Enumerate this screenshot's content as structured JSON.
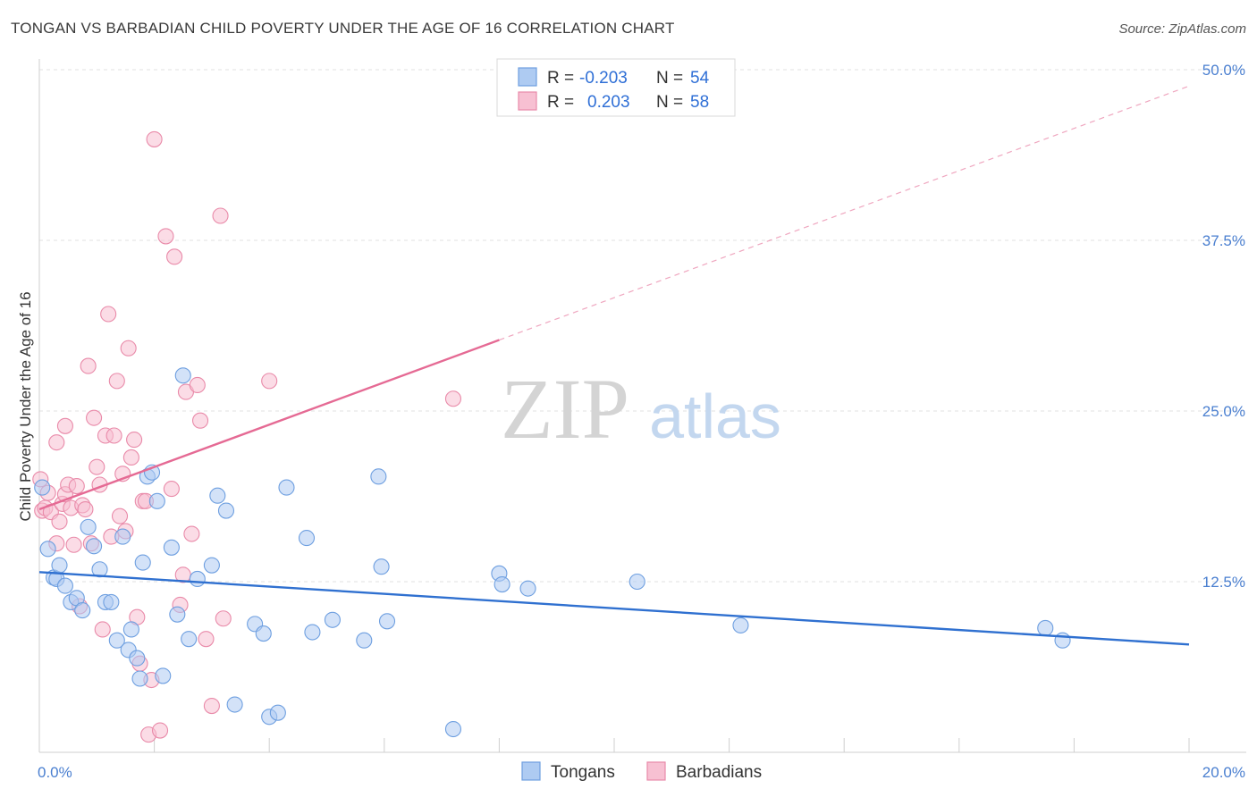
{
  "title": "TONGAN VS BARBADIAN CHILD POVERTY UNDER THE AGE OF 16 CORRELATION CHART",
  "source": "Source: ZipAtlas.com",
  "watermark": {
    "zip": "ZIP",
    "atlas": "atlas"
  },
  "colors": {
    "tongans_fill": "#aecbf2",
    "tongans_stroke": "#6e9fe0",
    "tongans_line": "#2f70d0",
    "barbadians_fill": "#f7c0d2",
    "barbadians_stroke": "#e98aa9",
    "barbadians_line": "#e56a94",
    "tick": "#4a7fd0"
  },
  "legend": {
    "rows": [
      {
        "r_label": "R =",
        "r_value": "-0.203",
        "n_label": "N =",
        "n_value": "54"
      },
      {
        "r_label": "R =",
        "r_value": "0.203",
        "n_label": "N =",
        "n_value": "58"
      }
    ]
  },
  "chart_data": {
    "type": "scatter",
    "title": "TONGAN VS BARBADIAN CHILD POVERTY UNDER THE AGE OF 16 CORRELATION CHART",
    "xlabel": "",
    "ylabel": "Child Poverty Under the Age of 16",
    "xlim": [
      0,
      20
    ],
    "ylim": [
      0,
      50
    ],
    "x_tick_labels": [
      {
        "value": 0,
        "label": "0.0%"
      },
      {
        "value": 20,
        "label": "20.0%"
      }
    ],
    "y_tick_labels": [
      {
        "value": 12.5,
        "label": "12.5%"
      },
      {
        "value": 25,
        "label": "25.0%"
      },
      {
        "value": 37.5,
        "label": "37.5%"
      },
      {
        "value": 50,
        "label": "50.0%"
      }
    ],
    "grid": true,
    "legend_position": "top-center",
    "series": [
      {
        "name": "Tongans",
        "r": -0.203,
        "n": 54,
        "trend": {
          "x": [
            0,
            20
          ],
          "y": [
            13.2,
            7.9
          ],
          "solid_until": 20
        },
        "points": [
          [
            0.05,
            19.4
          ],
          [
            0.15,
            14.9
          ],
          [
            0.25,
            12.8
          ],
          [
            0.3,
            12.7
          ],
          [
            0.35,
            13.7
          ],
          [
            0.45,
            12.2
          ],
          [
            0.55,
            11.0
          ],
          [
            0.65,
            11.3
          ],
          [
            0.75,
            10.4
          ],
          [
            0.85,
            16.5
          ],
          [
            0.95,
            15.1
          ],
          [
            1.05,
            13.4
          ],
          [
            1.15,
            11.0
          ],
          [
            1.25,
            11.0
          ],
          [
            1.35,
            8.2
          ],
          [
            1.45,
            15.8
          ],
          [
            1.55,
            7.5
          ],
          [
            1.6,
            9.0
          ],
          [
            1.7,
            6.9
          ],
          [
            1.75,
            5.4
          ],
          [
            1.8,
            13.9
          ],
          [
            1.88,
            20.2
          ],
          [
            1.96,
            20.5
          ],
          [
            2.05,
            18.4
          ],
          [
            2.15,
            5.6
          ],
          [
            2.3,
            15.0
          ],
          [
            2.4,
            10.1
          ],
          [
            2.5,
            27.6
          ],
          [
            2.6,
            8.3
          ],
          [
            2.75,
            12.7
          ],
          [
            3.0,
            13.7
          ],
          [
            3.1,
            18.8
          ],
          [
            3.25,
            17.7
          ],
          [
            3.4,
            3.5
          ],
          [
            3.75,
            9.4
          ],
          [
            3.9,
            8.7
          ],
          [
            4.0,
            2.6
          ],
          [
            4.15,
            2.9
          ],
          [
            4.3,
            19.4
          ],
          [
            4.65,
            15.7
          ],
          [
            4.75,
            8.8
          ],
          [
            5.1,
            9.7
          ],
          [
            5.65,
            8.2
          ],
          [
            5.9,
            20.2
          ],
          [
            5.95,
            13.6
          ],
          [
            6.05,
            9.6
          ],
          [
            7.2,
            1.7
          ],
          [
            8.0,
            13.1
          ],
          [
            8.05,
            12.3
          ],
          [
            8.5,
            12.0
          ],
          [
            10.4,
            12.5
          ],
          [
            12.2,
            9.3
          ],
          [
            17.5,
            9.1
          ],
          [
            17.8,
            8.2
          ]
        ]
      },
      {
        "name": "Barbadians",
        "r": 0.203,
        "n": 58,
        "trend": {
          "x": [
            0,
            20
          ],
          "y": [
            17.8,
            48.8
          ],
          "solid_until": 8
        },
        "points": [
          [
            0.02,
            20.0
          ],
          [
            0.05,
            17.7
          ],
          [
            0.1,
            17.9
          ],
          [
            0.15,
            19.0
          ],
          [
            0.2,
            17.6
          ],
          [
            0.3,
            15.3
          ],
          [
            0.3,
            22.7
          ],
          [
            0.35,
            16.9
          ],
          [
            0.4,
            18.2
          ],
          [
            0.45,
            18.9
          ],
          [
            0.45,
            23.9
          ],
          [
            0.5,
            19.6
          ],
          [
            0.55,
            17.9
          ],
          [
            0.6,
            15.2
          ],
          [
            0.65,
            19.5
          ],
          [
            0.7,
            10.7
          ],
          [
            0.75,
            18.1
          ],
          [
            0.8,
            17.8
          ],
          [
            0.85,
            28.3
          ],
          [
            0.9,
            15.3
          ],
          [
            0.95,
            24.5
          ],
          [
            1.0,
            20.9
          ],
          [
            1.05,
            19.6
          ],
          [
            1.1,
            9.0
          ],
          [
            1.15,
            23.2
          ],
          [
            1.2,
            32.1
          ],
          [
            1.25,
            15.8
          ],
          [
            1.3,
            23.2
          ],
          [
            1.35,
            27.2
          ],
          [
            1.4,
            17.3
          ],
          [
            1.45,
            20.4
          ],
          [
            1.5,
            16.2
          ],
          [
            1.55,
            29.6
          ],
          [
            1.6,
            21.6
          ],
          [
            1.65,
            22.9
          ],
          [
            1.7,
            9.9
          ],
          [
            1.75,
            6.5
          ],
          [
            1.8,
            18.4
          ],
          [
            1.85,
            18.4
          ],
          [
            1.9,
            1.3
          ],
          [
            1.95,
            5.3
          ],
          [
            2.0,
            44.9
          ],
          [
            2.1,
            1.6
          ],
          [
            2.2,
            37.8
          ],
          [
            2.3,
            19.3
          ],
          [
            2.35,
            36.3
          ],
          [
            2.45,
            10.8
          ],
          [
            2.5,
            13.0
          ],
          [
            2.55,
            26.4
          ],
          [
            2.65,
            16.0
          ],
          [
            2.75,
            26.9
          ],
          [
            2.8,
            24.3
          ],
          [
            2.9,
            8.3
          ],
          [
            3.0,
            3.4
          ],
          [
            3.15,
            39.3
          ],
          [
            3.2,
            9.8
          ],
          [
            4.0,
            27.2
          ],
          [
            7.2,
            25.9
          ]
        ]
      }
    ]
  },
  "bottom_legend": [
    "Tongans",
    "Barbadians"
  ]
}
